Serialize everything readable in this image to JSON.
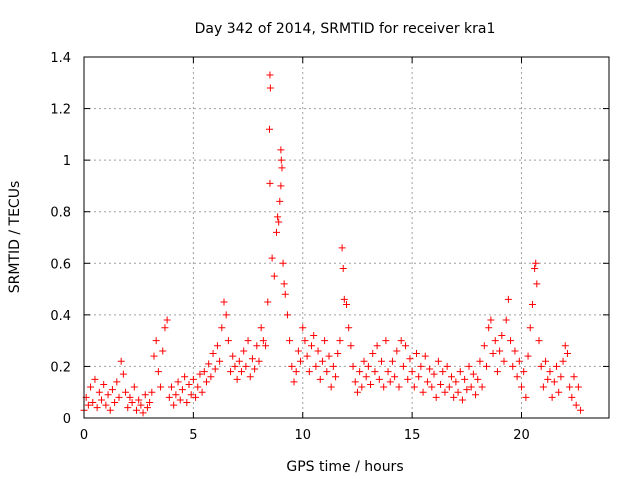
{
  "chart_data": {
    "type": "scatter",
    "title": "Day 342 of 2014, SRMTID for receiver kra1",
    "xlabel": "GPS time / hours",
    "ylabel": "SRMTID / TECUs",
    "xlim": [
      0,
      24
    ],
    "ylim": [
      0,
      1.4
    ],
    "xticks": [
      0,
      5,
      10,
      15,
      20
    ],
    "xtick_labels": [
      "0",
      "5",
      "10",
      "15",
      "20"
    ],
    "yticks": [
      0,
      0.2,
      0.4,
      0.6,
      0.8,
      1.0,
      1.2,
      1.4
    ],
    "ytick_labels": [
      "0",
      "0.2",
      "0.4",
      "0.6",
      "0.8",
      "1",
      "1.2",
      "1.4"
    ],
    "grid": true,
    "marker": "+",
    "color": "#ff0000",
    "series": [
      {
        "name": "SRMTID",
        "points": [
          [
            0.0,
            0.03
          ],
          [
            0.1,
            0.08
          ],
          [
            0.2,
            0.05
          ],
          [
            0.3,
            0.12
          ],
          [
            0.4,
            0.06
          ],
          [
            0.5,
            0.15
          ],
          [
            0.6,
            0.04
          ],
          [
            0.7,
            0.1
          ],
          [
            0.8,
            0.07
          ],
          [
            0.9,
            0.13
          ],
          [
            1.0,
            0.05
          ],
          [
            1.1,
            0.09
          ],
          [
            1.2,
            0.03
          ],
          [
            1.3,
            0.11
          ],
          [
            1.4,
            0.06
          ],
          [
            1.5,
            0.14
          ],
          [
            1.6,
            0.08
          ],
          [
            1.7,
            0.22
          ],
          [
            1.8,
            0.17
          ],
          [
            1.9,
            0.1
          ],
          [
            2.0,
            0.04
          ],
          [
            2.1,
            0.08
          ],
          [
            2.2,
            0.06
          ],
          [
            2.3,
            0.12
          ],
          [
            2.4,
            0.03
          ],
          [
            2.5,
            0.07
          ],
          [
            2.6,
            0.05
          ],
          [
            2.7,
            0.02
          ],
          [
            2.8,
            0.09
          ],
          [
            2.9,
            0.04
          ],
          [
            3.0,
            0.06
          ],
          [
            3.1,
            0.1
          ],
          [
            3.2,
            0.24
          ],
          [
            3.3,
            0.3
          ],
          [
            3.4,
            0.18
          ],
          [
            3.5,
            0.12
          ],
          [
            3.6,
            0.26
          ],
          [
            3.7,
            0.35
          ],
          [
            3.8,
            0.38
          ],
          [
            3.9,
            0.08
          ],
          [
            4.0,
            0.12
          ],
          [
            4.1,
            0.05
          ],
          [
            4.2,
            0.09
          ],
          [
            4.3,
            0.14
          ],
          [
            4.4,
            0.07
          ],
          [
            4.5,
            0.11
          ],
          [
            4.6,
            0.16
          ],
          [
            4.7,
            0.06
          ],
          [
            4.8,
            0.13
          ],
          [
            4.9,
            0.09
          ],
          [
            5.0,
            0.15
          ],
          [
            5.1,
            0.08
          ],
          [
            5.2,
            0.12
          ],
          [
            5.3,
            0.17
          ],
          [
            5.4,
            0.1
          ],
          [
            5.5,
            0.18
          ],
          [
            5.6,
            0.14
          ],
          [
            5.7,
            0.21
          ],
          [
            5.8,
            0.16
          ],
          [
            5.9,
            0.25
          ],
          [
            6.0,
            0.19
          ],
          [
            6.1,
            0.28
          ],
          [
            6.2,
            0.22
          ],
          [
            6.3,
            0.35
          ],
          [
            6.4,
            0.45
          ],
          [
            6.5,
            0.4
          ],
          [
            6.6,
            0.3
          ],
          [
            6.7,
            0.18
          ],
          [
            6.8,
            0.24
          ],
          [
            6.9,
            0.2
          ],
          [
            7.0,
            0.15
          ],
          [
            7.1,
            0.22
          ],
          [
            7.2,
            0.18
          ],
          [
            7.3,
            0.26
          ],
          [
            7.4,
            0.2
          ],
          [
            7.5,
            0.3
          ],
          [
            7.6,
            0.16
          ],
          [
            7.7,
            0.23
          ],
          [
            7.8,
            0.19
          ],
          [
            7.9,
            0.28
          ],
          [
            8.0,
            0.22
          ],
          [
            8.1,
            0.35
          ],
          [
            8.2,
            0.3
          ],
          [
            8.3,
            0.28
          ],
          [
            8.4,
            0.45
          ],
          [
            8.5,
            1.33
          ],
          [
            8.52,
            1.28
          ],
          [
            8.48,
            1.12
          ],
          [
            8.5,
            0.91
          ],
          [
            8.6,
            0.62
          ],
          [
            8.7,
            0.55
          ],
          [
            8.8,
            0.72
          ],
          [
            8.85,
            0.78
          ],
          [
            8.9,
            0.76
          ],
          [
            8.95,
            0.84
          ],
          [
            9.0,
            1.04
          ],
          [
            9.02,
            1.0
          ],
          [
            9.05,
            0.97
          ],
          [
            9.0,
            0.9
          ],
          [
            9.1,
            0.6
          ],
          [
            9.15,
            0.52
          ],
          [
            9.2,
            0.48
          ],
          [
            9.3,
            0.4
          ],
          [
            9.4,
            0.3
          ],
          [
            9.5,
            0.2
          ],
          [
            9.6,
            0.14
          ],
          [
            9.7,
            0.18
          ],
          [
            9.8,
            0.26
          ],
          [
            9.9,
            0.22
          ],
          [
            10.0,
            0.35
          ],
          [
            10.1,
            0.3
          ],
          [
            10.2,
            0.24
          ],
          [
            10.3,
            0.18
          ],
          [
            10.4,
            0.28
          ],
          [
            10.5,
            0.32
          ],
          [
            10.6,
            0.2
          ],
          [
            10.7,
            0.26
          ],
          [
            10.8,
            0.15
          ],
          [
            10.9,
            0.22
          ],
          [
            11.0,
            0.3
          ],
          [
            11.1,
            0.18
          ],
          [
            11.2,
            0.24
          ],
          [
            11.3,
            0.12
          ],
          [
            11.4,
            0.2
          ],
          [
            11.5,
            0.16
          ],
          [
            11.6,
            0.25
          ],
          [
            11.7,
            0.3
          ],
          [
            11.8,
            0.66
          ],
          [
            11.85,
            0.58
          ],
          [
            11.9,
            0.46
          ],
          [
            12.0,
            0.44
          ],
          [
            12.1,
            0.35
          ],
          [
            12.2,
            0.28
          ],
          [
            12.3,
            0.2
          ],
          [
            12.4,
            0.14
          ],
          [
            12.5,
            0.1
          ],
          [
            12.6,
            0.18
          ],
          [
            12.7,
            0.12
          ],
          [
            12.8,
            0.22
          ],
          [
            12.9,
            0.16
          ],
          [
            13.0,
            0.2
          ],
          [
            13.1,
            0.13
          ],
          [
            13.2,
            0.25
          ],
          [
            13.3,
            0.18
          ],
          [
            13.4,
            0.28
          ],
          [
            13.5,
            0.15
          ],
          [
            13.6,
            0.22
          ],
          [
            13.7,
            0.12
          ],
          [
            13.8,
            0.3
          ],
          [
            13.9,
            0.18
          ],
          [
            14.0,
            0.14
          ],
          [
            14.1,
            0.22
          ],
          [
            14.2,
            0.16
          ],
          [
            14.3,
            0.26
          ],
          [
            14.4,
            0.12
          ],
          [
            14.5,
            0.3
          ],
          [
            14.6,
            0.2
          ],
          [
            14.7,
            0.28
          ],
          [
            14.8,
            0.15
          ],
          [
            14.9,
            0.23
          ],
          [
            15.0,
            0.18
          ],
          [
            15.1,
            0.12
          ],
          [
            15.2,
            0.25
          ],
          [
            15.3,
            0.16
          ],
          [
            15.4,
            0.2
          ],
          [
            15.5,
            0.1
          ],
          [
            15.6,
            0.24
          ],
          [
            15.7,
            0.14
          ],
          [
            15.8,
            0.19
          ],
          [
            15.9,
            0.12
          ],
          [
            16.0,
            0.17
          ],
          [
            16.1,
            0.08
          ],
          [
            16.2,
            0.22
          ],
          [
            16.3,
            0.13
          ],
          [
            16.4,
            0.18
          ],
          [
            16.5,
            0.1
          ],
          [
            16.6,
            0.2
          ],
          [
            16.7,
            0.12
          ],
          [
            16.8,
            0.16
          ],
          [
            16.9,
            0.08
          ],
          [
            17.0,
            0.14
          ],
          [
            17.1,
            0.1
          ],
          [
            17.2,
            0.18
          ],
          [
            17.3,
            0.07
          ],
          [
            17.4,
            0.15
          ],
          [
            17.5,
            0.11
          ],
          [
            17.6,
            0.2
          ],
          [
            17.7,
            0.12
          ],
          [
            17.8,
            0.17
          ],
          [
            17.9,
            0.09
          ],
          [
            18.0,
            0.15
          ],
          [
            18.1,
            0.22
          ],
          [
            18.2,
            0.12
          ],
          [
            18.3,
            0.28
          ],
          [
            18.4,
            0.2
          ],
          [
            18.5,
            0.35
          ],
          [
            18.6,
            0.38
          ],
          [
            18.7,
            0.25
          ],
          [
            18.8,
            0.3
          ],
          [
            18.9,
            0.18
          ],
          [
            19.0,
            0.26
          ],
          [
            19.1,
            0.32
          ],
          [
            19.2,
            0.22
          ],
          [
            19.3,
            0.38
          ],
          [
            19.4,
            0.46
          ],
          [
            19.5,
            0.3
          ],
          [
            19.6,
            0.2
          ],
          [
            19.7,
            0.26
          ],
          [
            19.8,
            0.16
          ],
          [
            19.9,
            0.22
          ],
          [
            20.0,
            0.12
          ],
          [
            20.1,
            0.18
          ],
          [
            20.2,
            0.08
          ],
          [
            20.3,
            0.24
          ],
          [
            20.4,
            0.35
          ],
          [
            20.5,
            0.44
          ],
          [
            20.6,
            0.58
          ],
          [
            20.65,
            0.6
          ],
          [
            20.7,
            0.52
          ],
          [
            20.8,
            0.3
          ],
          [
            20.9,
            0.2
          ],
          [
            21.0,
            0.12
          ],
          [
            21.1,
            0.22
          ],
          [
            21.2,
            0.15
          ],
          [
            21.3,
            0.18
          ],
          [
            21.4,
            0.08
          ],
          [
            21.5,
            0.14
          ],
          [
            21.6,
            0.2
          ],
          [
            21.7,
            0.1
          ],
          [
            21.8,
            0.16
          ],
          [
            21.9,
            0.22
          ],
          [
            22.0,
            0.28
          ],
          [
            22.1,
            0.25
          ],
          [
            22.2,
            0.12
          ],
          [
            22.3,
            0.08
          ],
          [
            22.4,
            0.16
          ],
          [
            22.5,
            0.05
          ],
          [
            22.6,
            0.12
          ],
          [
            22.7,
            0.03
          ]
        ]
      }
    ]
  }
}
